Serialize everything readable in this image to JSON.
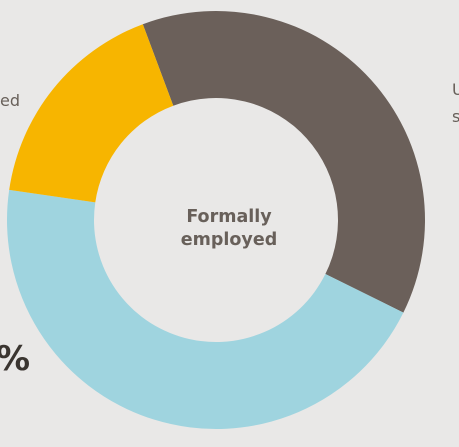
{
  "chart_data": {
    "type": "pie",
    "center_label": [
      "Formally",
      "employed"
    ],
    "slices": [
      {
        "value": 38,
        "color": "#6b605a"
      },
      {
        "value": 45,
        "color": "#9fd4df"
      },
      {
        "value": 17,
        "color": "#f7b500"
      }
    ],
    "edge_fragments": {
      "top_left": "ed",
      "top_right_1": "U",
      "top_right_2": "s",
      "bottom_left": "%"
    }
  }
}
